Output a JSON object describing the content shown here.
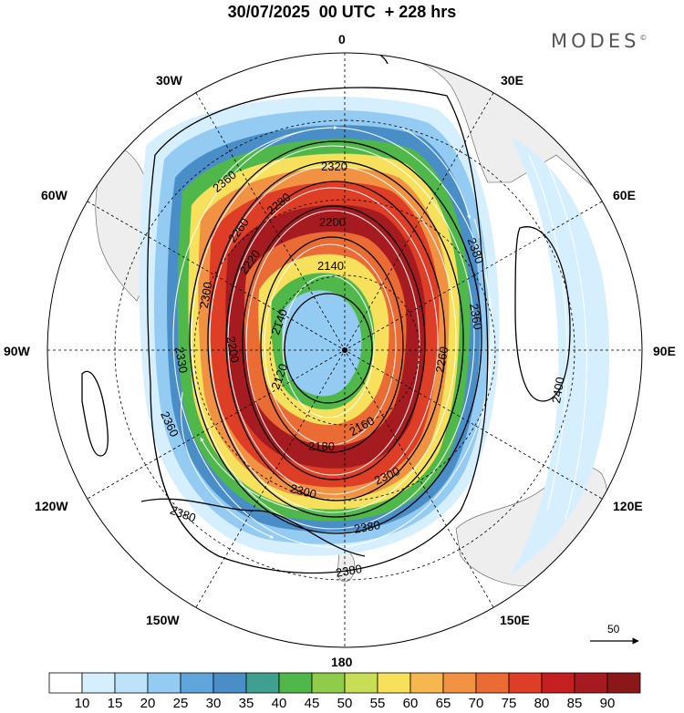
{
  "header": {
    "title": "30/07/2025  00 UTC  + 228 hrs",
    "brand": "MODES",
    "brand_mark": "©"
  },
  "map": {
    "projection": "south-polar-stereographic",
    "longitude_labels": [
      "0",
      "30E",
      "60E",
      "90E",
      "120E",
      "150E",
      "180",
      "150W",
      "120W",
      "90W",
      "60W",
      "30W"
    ],
    "contour_labels": [
      "2320",
      "2360",
      "2280",
      "2200",
      "2260",
      "2220",
      "2140",
      "2380",
      "2300",
      "2360",
      "2140",
      "2200",
      "2260",
      "2330",
      "2120",
      "2400",
      "2160",
      "2180",
      "2300",
      "2360",
      "2300",
      "2380",
      "2380"
    ],
    "contour_line_color": "#000000",
    "land_color": "#eeeeee"
  },
  "colorbar": {
    "ticks": [
      "10",
      "15",
      "20",
      "25",
      "30",
      "35",
      "40",
      "45",
      "50",
      "55",
      "60",
      "65",
      "70",
      "75",
      "80",
      "85",
      "90"
    ],
    "colors": [
      "#ffffff",
      "#d6efff",
      "#bde3fa",
      "#93cbf2",
      "#5fa6dc",
      "#4a8ec8",
      "#3fa08f",
      "#50b84a",
      "#8fcc4a",
      "#c6dd55",
      "#f7e15c",
      "#f6b650",
      "#f19243",
      "#ea6b34",
      "#de3d26",
      "#c61f22",
      "#a51b1f",
      "#8b1818"
    ]
  },
  "vector_reference": {
    "label": "50"
  }
}
